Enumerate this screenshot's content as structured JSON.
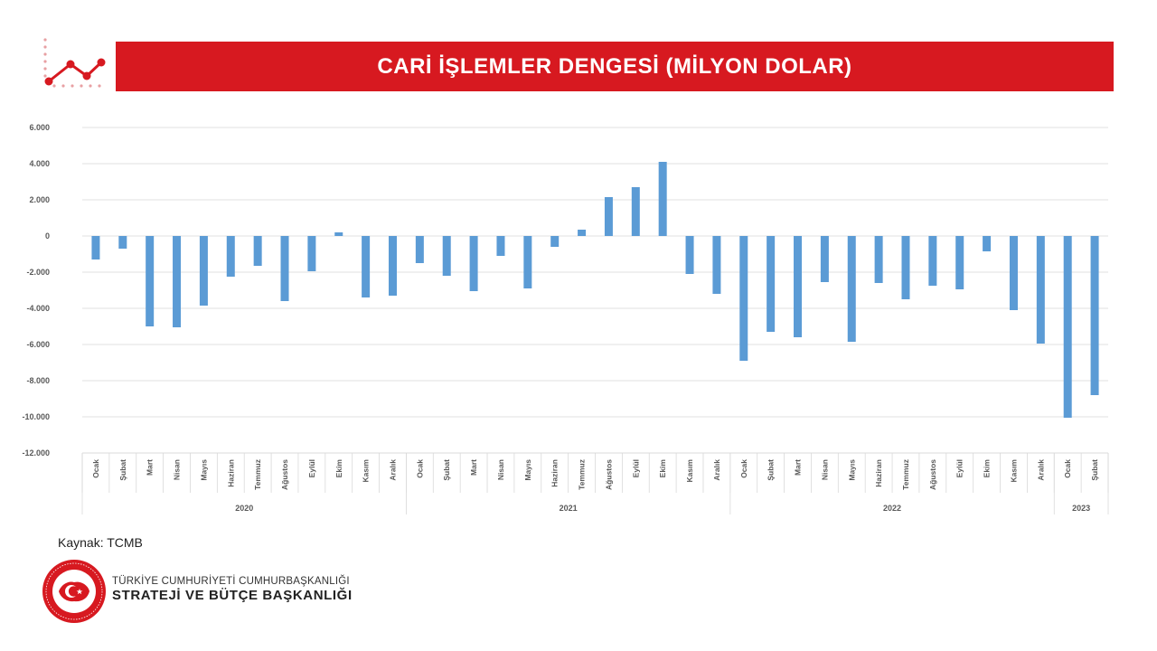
{
  "header": {
    "title": "CARİ İŞLEMLER DENGESİ (MİLYON DOLAR)",
    "accent_color": "#d71920",
    "icon": "line-chart-icon"
  },
  "source_text": "Kaynak: TCMB",
  "footer": {
    "line1": "TÜRKİYE CUMHURİYETİ CUMHURBAŞKANLIĞI",
    "line2": "STRATEJİ VE BÜTÇE BAŞKANLIĞI",
    "seal_icon": "turkish-crescent-star-seal-icon"
  },
  "chart_data": {
    "type": "bar",
    "title": "",
    "xlabel": "",
    "ylabel": "",
    "ylim": [
      -12000,
      6000
    ],
    "yticks": [
      6000,
      4000,
      2000,
      0,
      -2000,
      -4000,
      -6000,
      -8000,
      -10000,
      -12000
    ],
    "ytick_labels": [
      "6.000",
      "4.000",
      "2.000",
      "0",
      "-2.000",
      "-4.000",
      "-6.000",
      "-8.000",
      "-10.000",
      "-12.000"
    ],
    "grid": true,
    "legend": "none",
    "bar_color": "#5b9bd5",
    "categories": [
      "Ocak",
      "Şubat",
      "Mart",
      "Nisan",
      "Mayıs",
      "Haziran",
      "Temmuz",
      "Ağustos",
      "Eylül",
      "Ekim",
      "Kasım",
      "Aralık",
      "Ocak",
      "Şubat",
      "Mart",
      "Nisan",
      "Mayıs",
      "Haziran",
      "Temmuz",
      "Ağustos",
      "Eylül",
      "Ekim",
      "Kasım",
      "Aralık",
      "Ocak",
      "Şubat",
      "Mart",
      "Nisan",
      "Mayıs",
      "Haziran",
      "Temmuz",
      "Ağustos",
      "Eylül",
      "Ekim",
      "Kasım",
      "Aralık",
      "Ocak",
      "Şubat"
    ],
    "groups": [
      {
        "label": "2020",
        "count": 12
      },
      {
        "label": "2021",
        "count": 12
      },
      {
        "label": "2022",
        "count": 12
      },
      {
        "label": "2023",
        "count": 2
      }
    ],
    "values": [
      -1300,
      -700,
      -5000,
      -5050,
      -3850,
      -2250,
      -1650,
      -3600,
      -1950,
      200,
      -3400,
      -3300,
      -1500,
      -2200,
      -3050,
      -1100,
      -2900,
      -600,
      350,
      2150,
      2700,
      4100,
      -2100,
      -3200,
      -6900,
      -5300,
      -5600,
      -2550,
      -5850,
      -2600,
      -3500,
      -2750,
      -2950,
      -850,
      -4100,
      -5950,
      -10050,
      -8800
    ]
  }
}
